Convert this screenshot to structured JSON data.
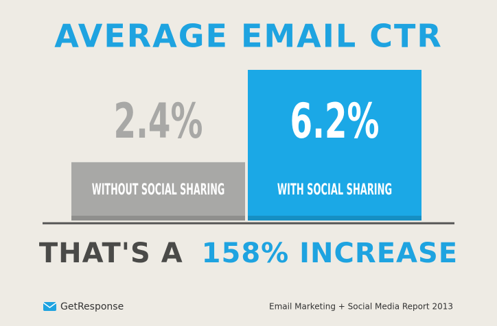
{
  "chart_data": {
    "type": "bar",
    "title": "AVERAGE EMAIL CTR",
    "categories": [
      "WITHOUT SOCIAL SHARING",
      "WITH SOCIAL SHARING"
    ],
    "values": [
      2.4,
      6.2
    ],
    "value_labels": [
      "2.4%",
      "6.2%"
    ],
    "colors": [
      "#a8a8a6",
      "#1ba8e6"
    ],
    "annotation_prefix": "THAT'S A",
    "annotation_highlight": "158% INCREASE",
    "brand": "GetResponse",
    "source": "Email Marketing + Social Media Report 2013"
  }
}
